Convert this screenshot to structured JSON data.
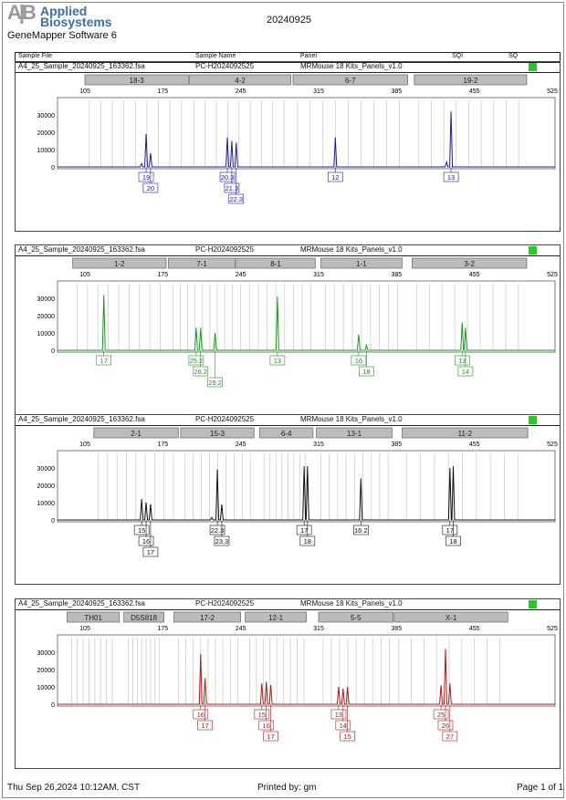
{
  "header": {
    "logo": "Applied Biosystems",
    "logo_mark": "AB",
    "software": "GeneMapper Software 6",
    "title": "20240925",
    "columns": [
      "Sample File",
      "Sample Name",
      "Panel",
      "SQI",
      "SQ"
    ]
  },
  "footer": {
    "date": "Thu Sep 26,2024 10:12AM, CST",
    "printed_by": "Printed by: gm",
    "page": "Page 1 of 1"
  },
  "axis": {
    "x_ticks": [
      "105",
      "175",
      "245",
      "315",
      "385",
      "455",
      "525"
    ],
    "y_ticks": [
      "0",
      "10000",
      "20000",
      "30000"
    ]
  },
  "panels": [
    {
      "sample_file": "A4_25_Sample_20240925_163362.fsa",
      "sample_name": "PC-H2024092525",
      "panel": "MRMouse 18 Kits_Panels_v1.0",
      "sq_color": "#22cc22",
      "color": "#1a1aa0",
      "markers": [
        {
          "name": "18-3",
          "range": [
            105,
            198
          ]
        },
        {
          "name": "4-2",
          "range": [
            199,
            290
          ]
        },
        {
          "name": "6-7",
          "range": [
            292,
            395
          ]
        },
        {
          "name": "19-2",
          "range": [
            401,
            502
          ]
        }
      ],
      "peaks": [
        {
          "bp": 156,
          "h": 2000
        },
        {
          "bp": 160,
          "h": 19000,
          "label": "19"
        },
        {
          "bp": 164,
          "h": 8000,
          "label": "20"
        },
        {
          "bp": 233,
          "h": 17000,
          "label": "20.3"
        },
        {
          "bp": 237,
          "h": 15000,
          "label": "21.3"
        },
        {
          "bp": 241,
          "h": 14000,
          "label": "22.3"
        },
        {
          "bp": 330,
          "h": 17000,
          "label": "12"
        },
        {
          "bp": 430,
          "h": 3000
        },
        {
          "bp": 434,
          "h": 32000,
          "label": "13"
        }
      ]
    },
    {
      "sample_file": "A4_25_Sample_20240925_163362.fsa",
      "sample_name": "PC-H2024092525",
      "panel": "MRMouse 18 Kits_Panels_v1.0",
      "sq_color": "#22cc22",
      "color": "#1a9a1a",
      "markers": [
        {
          "name": "1-2",
          "range": [
            94,
            178
          ]
        },
        {
          "name": "7-1",
          "range": [
            180,
            240
          ]
        },
        {
          "name": "8-1",
          "range": [
            241,
            312
          ]
        },
        {
          "name": "1-1",
          "range": [
            317,
            390
          ]
        },
        {
          "name": "3-2",
          "range": [
            399,
            502
          ]
        }
      ],
      "peaks": [
        {
          "bp": 122,
          "h": 32000,
          "label": "17"
        },
        {
          "bp": 205,
          "h": 13000,
          "label": "25.2"
        },
        {
          "bp": 209,
          "h": 13000,
          "label": "26.2"
        },
        {
          "bp": 222,
          "h": 10000,
          "label": "29.2"
        },
        {
          "bp": 278,
          "h": 31000,
          "label": "13"
        },
        {
          "bp": 351,
          "h": 9000,
          "label": "16"
        },
        {
          "bp": 358,
          "h": 3000,
          "label": "18"
        },
        {
          "bp": 444,
          "h": 16000,
          "label": "13"
        },
        {
          "bp": 447,
          "h": 13000,
          "label": "14"
        }
      ]
    },
    {
      "sample_file": "A4_25_Sample_20240925_163362.fsa",
      "sample_name": "PC-H2024092525",
      "panel": "MRMouse 18 Kits_Panels_v1.0",
      "sq_color": "#22cc22",
      "color": "#111111",
      "markers": [
        {
          "name": "2-1",
          "range": [
            113,
            189
          ]
        },
        {
          "name": "15-3",
          "range": [
            191,
            257
          ]
        },
        {
          "name": "6-4",
          "range": [
            262,
            310
          ]
        },
        {
          "name": "13-1",
          "range": [
            313,
            381
          ]
        },
        {
          "name": "11-2",
          "range": [
            390,
            503
          ]
        }
      ],
      "peaks": [
        {
          "bp": 156,
          "h": 12000,
          "label": "15"
        },
        {
          "bp": 160,
          "h": 10000,
          "label": "16"
        },
        {
          "bp": 164,
          "h": 9000,
          "label": "17"
        },
        {
          "bp": 219,
          "h": 1500
        },
        {
          "bp": 224,
          "h": 29000,
          "label": "22.3"
        },
        {
          "bp": 228,
          "h": 9000,
          "label": "23.3"
        },
        {
          "bp": 302,
          "h": 31000,
          "label": "17"
        },
        {
          "bp": 305,
          "h": 31000,
          "label": "18"
        },
        {
          "bp": 353,
          "h": 24000,
          "label": "16.2"
        },
        {
          "bp": 433,
          "h": 30000,
          "label": "17"
        },
        {
          "bp": 436,
          "h": 31000,
          "label": "18"
        }
      ]
    },
    {
      "sample_file": "A4_25_Sample_20240925_163362.fsa",
      "sample_name": "PC-H2024092525",
      "panel": "MRMouse 18 Kits_Panels_v1.0",
      "sq_color": "#22cc22",
      "color": "#b01818",
      "markers": [
        {
          "name": "TH01",
          "range": [
            89,
            136
          ]
        },
        {
          "name": "D5S818",
          "range": [
            140,
            176
          ]
        },
        {
          "name": "17-2",
          "range": [
            185,
            245
          ]
        },
        {
          "name": "12-1",
          "range": [
            249,
            304
          ]
        },
        {
          "name": "5-5",
          "range": [
            315,
            382
          ]
        },
        {
          "name": "X-1",
          "range": [
            383,
            485
          ]
        }
      ],
      "peaks": [
        {
          "bp": 209,
          "h": 29000,
          "label": "16"
        },
        {
          "bp": 213,
          "h": 15000,
          "label": "17"
        },
        {
          "bp": 264,
          "h": 12000,
          "label": "15"
        },
        {
          "bp": 268,
          "h": 13000,
          "label": "16"
        },
        {
          "bp": 272,
          "h": 11000,
          "label": "17"
        },
        {
          "bp": 333,
          "h": 10000,
          "label": "13"
        },
        {
          "bp": 337,
          "h": 9000,
          "label": "14"
        },
        {
          "bp": 341,
          "h": 10000,
          "label": "15"
        },
        {
          "bp": 425,
          "h": 11000,
          "label": "25"
        },
        {
          "bp": 429,
          "h": 32000,
          "label": "26"
        },
        {
          "bp": 433,
          "h": 12000,
          "label": "27"
        }
      ]
    }
  ]
}
